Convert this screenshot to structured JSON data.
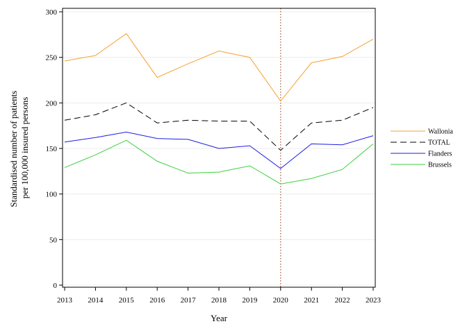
{
  "chart_data": {
    "type": "line",
    "title": "",
    "xlabel": "Year",
    "ylabel_lines": [
      "Standardised number of patients",
      "per 100,000 insured persons"
    ],
    "x": [
      2013,
      2014,
      2015,
      2016,
      2017,
      2018,
      2019,
      2020,
      2021,
      2022,
      2023
    ],
    "xlim": [
      2013,
      2023
    ],
    "ylim": [
      0,
      300
    ],
    "yticks": [
      0,
      50,
      100,
      150,
      200,
      250,
      300
    ],
    "grid": true,
    "reference_line": {
      "x": 2020,
      "style": "dotted",
      "color": "#a0522d"
    },
    "legend_position": "right",
    "series": [
      {
        "name": "Wallonia",
        "color": "#f5a030",
        "dash": "none",
        "values": [
          246,
          252,
          276,
          228,
          243,
          257,
          250,
          202,
          244,
          251,
          270
        ]
      },
      {
        "name": "TOTAL",
        "color": "#000000",
        "dash": "9,5",
        "values": [
          181,
          187,
          200,
          178,
          181,
          180,
          180,
          148,
          178,
          181,
          195
        ]
      },
      {
        "name": "Flanders",
        "color": "#1a1ae6",
        "dash": "none",
        "values": [
          157,
          162,
          168,
          161,
          160,
          150,
          153,
          128,
          155,
          154,
          164
        ]
      },
      {
        "name": "Brussels",
        "color": "#3ccf3c",
        "dash": "none",
        "values": [
          129,
          143,
          159,
          136,
          123,
          124,
          131,
          111,
          117,
          127,
          155
        ]
      }
    ]
  }
}
